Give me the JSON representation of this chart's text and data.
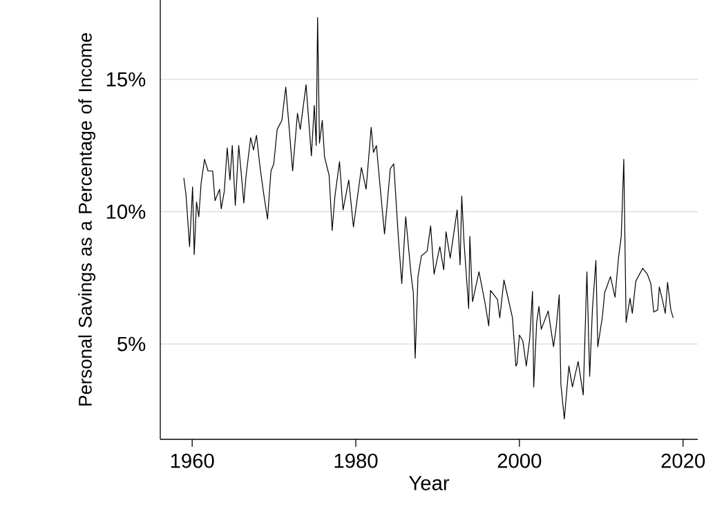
{
  "chart_data": {
    "type": "line",
    "xlabel": "Year",
    "ylabel": "Personal Savings as a Percentage of Income",
    "x": [
      1958.98,
      1959.26,
      1959.68,
      1960.05,
      1960.25,
      1960.53,
      1960.81,
      1961.09,
      1961.51,
      1961.94,
      1962.5,
      1962.79,
      1963.35,
      1963.55,
      1963.92,
      1964.28,
      1964.62,
      1964.9,
      1965.27,
      1965.69,
      1965.97,
      1966.31,
      1966.59,
      1967.15,
      1967.49,
      1967.86,
      1968.28,
      1968.7,
      1969.21,
      1969.63,
      1969.97,
      1970.39,
      1970.96,
      1971.44,
      1971.8,
      1972.28,
      1972.87,
      1973.21,
      1973.92,
      1974.57,
      1974.93,
      1975.16,
      1975.33,
      1975.56,
      1975.9,
      1976.18,
      1976.74,
      1977.11,
      1977.45,
      1978.01,
      1978.44,
      1979.14,
      1979.71,
      1980.69,
      1981.26,
      1981.88,
      1982.16,
      1982.52,
      1982.95,
      1983.51,
      1984.22,
      1984.64,
      1985.2,
      1985.62,
      1986.1,
      1986.75,
      1987.03,
      1987.26,
      1987.6,
      1988.02,
      1988.72,
      1989.15,
      1989.57,
      1990.27,
      1990.75,
      1991.03,
      1991.54,
      1992.39,
      1992.75,
      1992.95,
      1993.23,
      1993.8,
      1993.94,
      1994.27,
      1995.06,
      1995.77,
      1996.25,
      1996.47,
      1997.32,
      1997.6,
      1998.11,
      1998.59,
      1999.15,
      1999.57,
      1999.71,
      2000.0,
      2000.42,
      2000.84,
      2001.26,
      2001.6,
      2001.75,
      2002.11,
      2002.39,
      2002.67,
      2003.52,
      2004.17,
      2004.5,
      2004.87,
      2005.07,
      2005.49,
      2006.05,
      2006.48,
      2007.18,
      2007.8,
      2008.25,
      2008.59,
      2008.93,
      2009.35,
      2009.58,
      2010.14,
      2010.42,
      2011.13,
      2011.69,
      2012.11,
      2012.45,
      2012.76,
      2013.04,
      2013.52,
      2013.8,
      2014.23,
      2015.07,
      2015.64,
      2016.06,
      2016.42,
      2016.9,
      2017.1,
      2017.47,
      2017.83,
      2018.11,
      2018.51,
      2018.79
    ],
    "series": [
      {
        "color": "#000000",
        "values": [
          11.28,
          10.59,
          8.68,
          10.94,
          8.38,
          10.37,
          9.81,
          11.07,
          11.98,
          11.54,
          11.54,
          10.42,
          10.85,
          10.11,
          10.76,
          12.41,
          11.2,
          12.5,
          10.24,
          12.5,
          11.54,
          10.33,
          11.37,
          12.8,
          12.33,
          12.89,
          11.72,
          10.76,
          9.72,
          11.54,
          11.8,
          13.11,
          13.45,
          14.71,
          13.37,
          11.54,
          13.72,
          13.11,
          14.8,
          12.11,
          14.02,
          12.5,
          17.34,
          12.59,
          13.45,
          12.07,
          11.37,
          9.29,
          10.59,
          11.89,
          10.07,
          11.2,
          9.42,
          11.67,
          10.85,
          13.19,
          12.24,
          12.5,
          11.02,
          9.16,
          11.63,
          11.81,
          9.03,
          7.29,
          9.81,
          7.64,
          6.94,
          4.47,
          7.55,
          8.33,
          8.51,
          9.46,
          7.64,
          8.68,
          7.81,
          9.24,
          8.25,
          10.07,
          7.99,
          10.59,
          8.85,
          6.34,
          9.07,
          6.6,
          7.73,
          6.6,
          5.69,
          7.03,
          6.68,
          5.99,
          7.42,
          6.77,
          5.99,
          4.17,
          4.25,
          5.34,
          5.12,
          4.17,
          5.21,
          6.99,
          3.38,
          5.82,
          6.42,
          5.56,
          6.25,
          4.9,
          5.64,
          6.86,
          3.47,
          2.17,
          4.17,
          3.38,
          4.34,
          3.08,
          7.73,
          3.78,
          6.34,
          8.16,
          4.9,
          6.03,
          6.94,
          7.55,
          6.77,
          8.25,
          9.07,
          11.98,
          5.82,
          6.73,
          6.16,
          7.38,
          7.86,
          7.64,
          7.29,
          6.21,
          6.29,
          7.16,
          6.68,
          6.16,
          7.33,
          6.29,
          5.99
        ]
      }
    ],
    "xlim": [
      1956.1,
      2021.8
    ],
    "xticks": [
      1960,
      1980,
      2000,
      2020
    ],
    "ylim": [
      1.4,
      18
    ],
    "yticks": [
      {
        "value": 5,
        "label": "5%"
      },
      {
        "value": 10,
        "label": "10%"
      },
      {
        "value": 15,
        "label": "15%"
      }
    ],
    "grid": "y",
    "marker": "none",
    "line_style": "solid"
  }
}
